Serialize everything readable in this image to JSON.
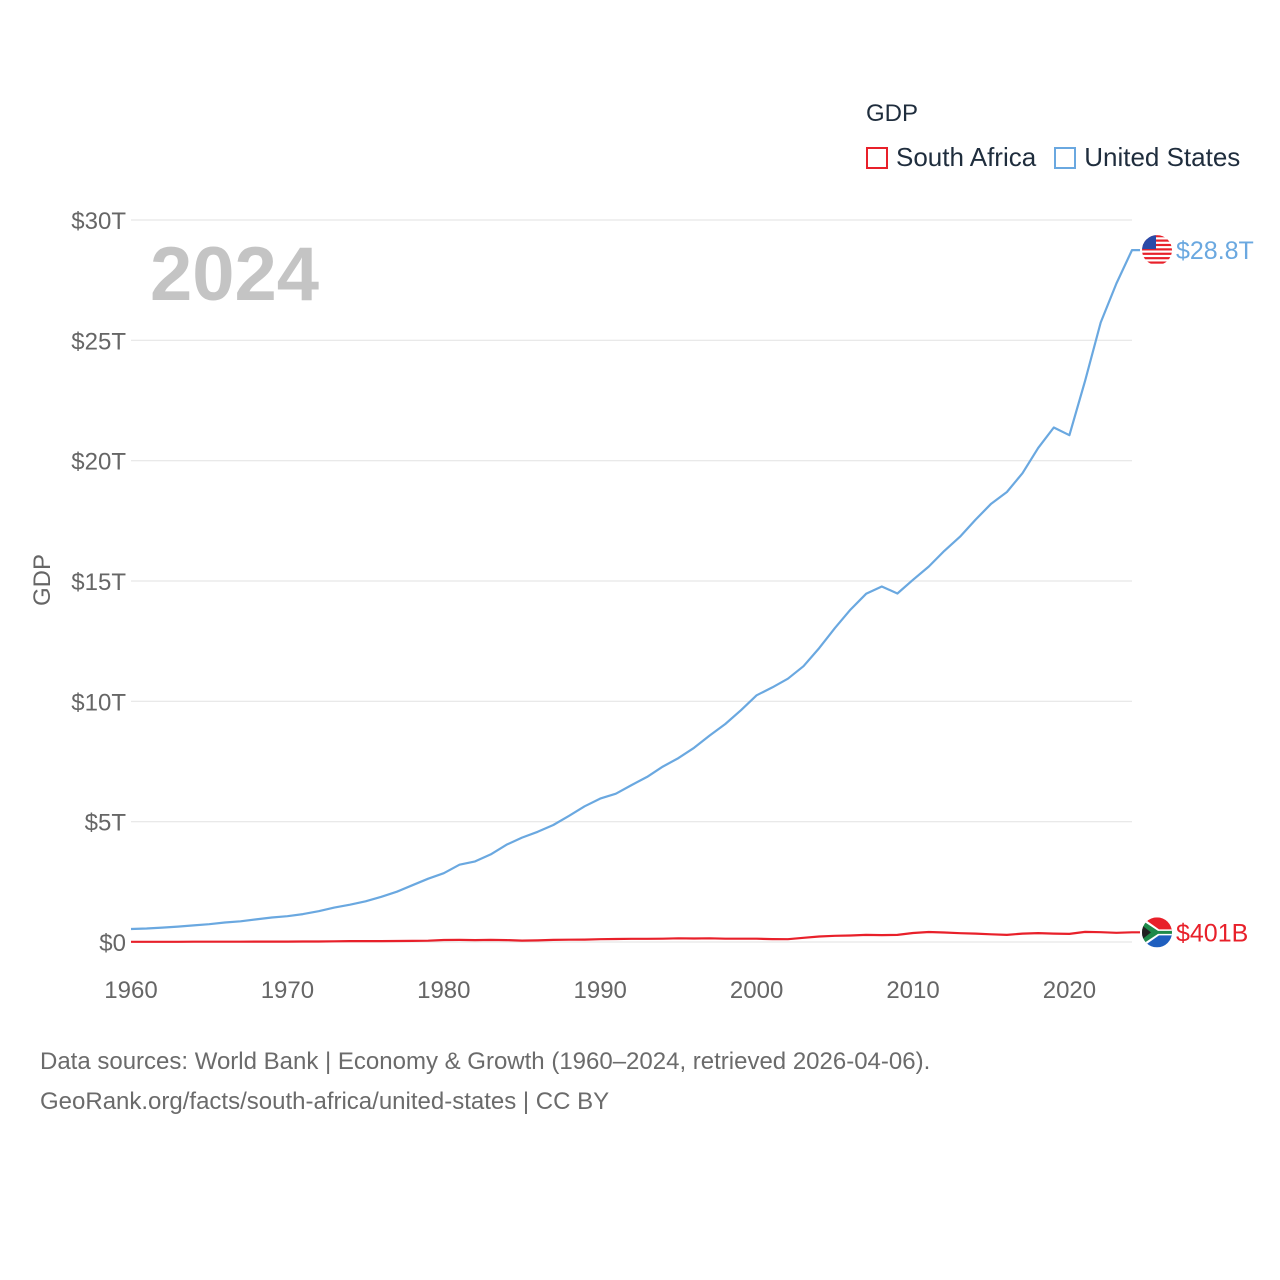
{
  "chart_data": {
    "type": "line",
    "legend_title": "GDP",
    "ylabel": "GDP",
    "xlabel": "",
    "year_watermark": "2024",
    "xlim": [
      1960,
      2024
    ],
    "ylim": [
      0,
      30
    ],
    "y_unit": "trillion USD",
    "x_ticks": [
      1960,
      1970,
      1980,
      1990,
      2000,
      2010,
      2020
    ],
    "x_tick_labels": [
      "1960",
      "1970",
      "1980",
      "1990",
      "2000",
      "2010",
      "2020"
    ],
    "y_ticks": [
      0,
      5,
      10,
      15,
      20,
      25,
      30
    ],
    "y_tick_labels": [
      "$0",
      "$5T",
      "$10T",
      "$15T",
      "$20T",
      "$25T",
      "$30T"
    ],
    "x": [
      1960,
      1961,
      1962,
      1963,
      1964,
      1965,
      1966,
      1967,
      1968,
      1969,
      1970,
      1971,
      1972,
      1973,
      1974,
      1975,
      1976,
      1977,
      1978,
      1979,
      1980,
      1981,
      1982,
      1983,
      1984,
      1985,
      1986,
      1987,
      1988,
      1989,
      1990,
      1991,
      1992,
      1993,
      1994,
      1995,
      1996,
      1997,
      1998,
      1999,
      2000,
      2001,
      2002,
      2003,
      2004,
      2005,
      2006,
      2007,
      2008,
      2009,
      2010,
      2011,
      2012,
      2013,
      2014,
      2015,
      2016,
      2017,
      2018,
      2019,
      2020,
      2021,
      2022,
      2023,
      2024
    ],
    "series": [
      {
        "name": "United States",
        "color": "#6aa8e0",
        "end_label": "$28.8T",
        "flag": "us-flag",
        "values": [
          0.54,
          0.56,
          0.6,
          0.64,
          0.69,
          0.74,
          0.81,
          0.86,
          0.94,
          1.02,
          1.07,
          1.16,
          1.28,
          1.43,
          1.55,
          1.69,
          1.88,
          2.09,
          2.36,
          2.63,
          2.86,
          3.21,
          3.35,
          3.64,
          4.04,
          4.34,
          4.58,
          4.86,
          5.24,
          5.64,
          5.96,
          6.16,
          6.52,
          6.86,
          7.29,
          7.64,
          8.07,
          8.58,
          9.06,
          9.63,
          10.25,
          10.58,
          10.94,
          11.46,
          12.21,
          13.04,
          13.81,
          14.47,
          14.77,
          14.48,
          15.05,
          15.6,
          16.25,
          16.84,
          17.55,
          18.21,
          18.7,
          19.48,
          20.53,
          21.38,
          21.06,
          23.32,
          25.74,
          27.36,
          28.75
        ]
      },
      {
        "name": "South Africa",
        "color": "#e8202a",
        "end_label": "$401B",
        "flag": "south-africa-flag",
        "values": [
          0.008,
          0.008,
          0.009,
          0.01,
          0.011,
          0.012,
          0.013,
          0.014,
          0.015,
          0.017,
          0.018,
          0.02,
          0.022,
          0.029,
          0.036,
          0.038,
          0.037,
          0.041,
          0.046,
          0.056,
          0.083,
          0.086,
          0.078,
          0.087,
          0.079,
          0.057,
          0.066,
          0.088,
          0.095,
          0.1,
          0.115,
          0.124,
          0.134,
          0.135,
          0.139,
          0.155,
          0.147,
          0.152,
          0.137,
          0.136,
          0.136,
          0.121,
          0.115,
          0.175,
          0.229,
          0.258,
          0.272,
          0.294,
          0.287,
          0.297,
          0.375,
          0.416,
          0.396,
          0.367,
          0.351,
          0.318,
          0.296,
          0.349,
          0.368,
          0.351,
          0.338,
          0.42,
          0.406,
          0.381,
          0.401
        ]
      }
    ]
  },
  "footer": {
    "line1": "Data sources: World Bank | Economy & Growth (1960–2024, retrieved 2026-04-06).",
    "line2": "GeoRank.org/facts/south-africa/united-states | CC BY"
  }
}
